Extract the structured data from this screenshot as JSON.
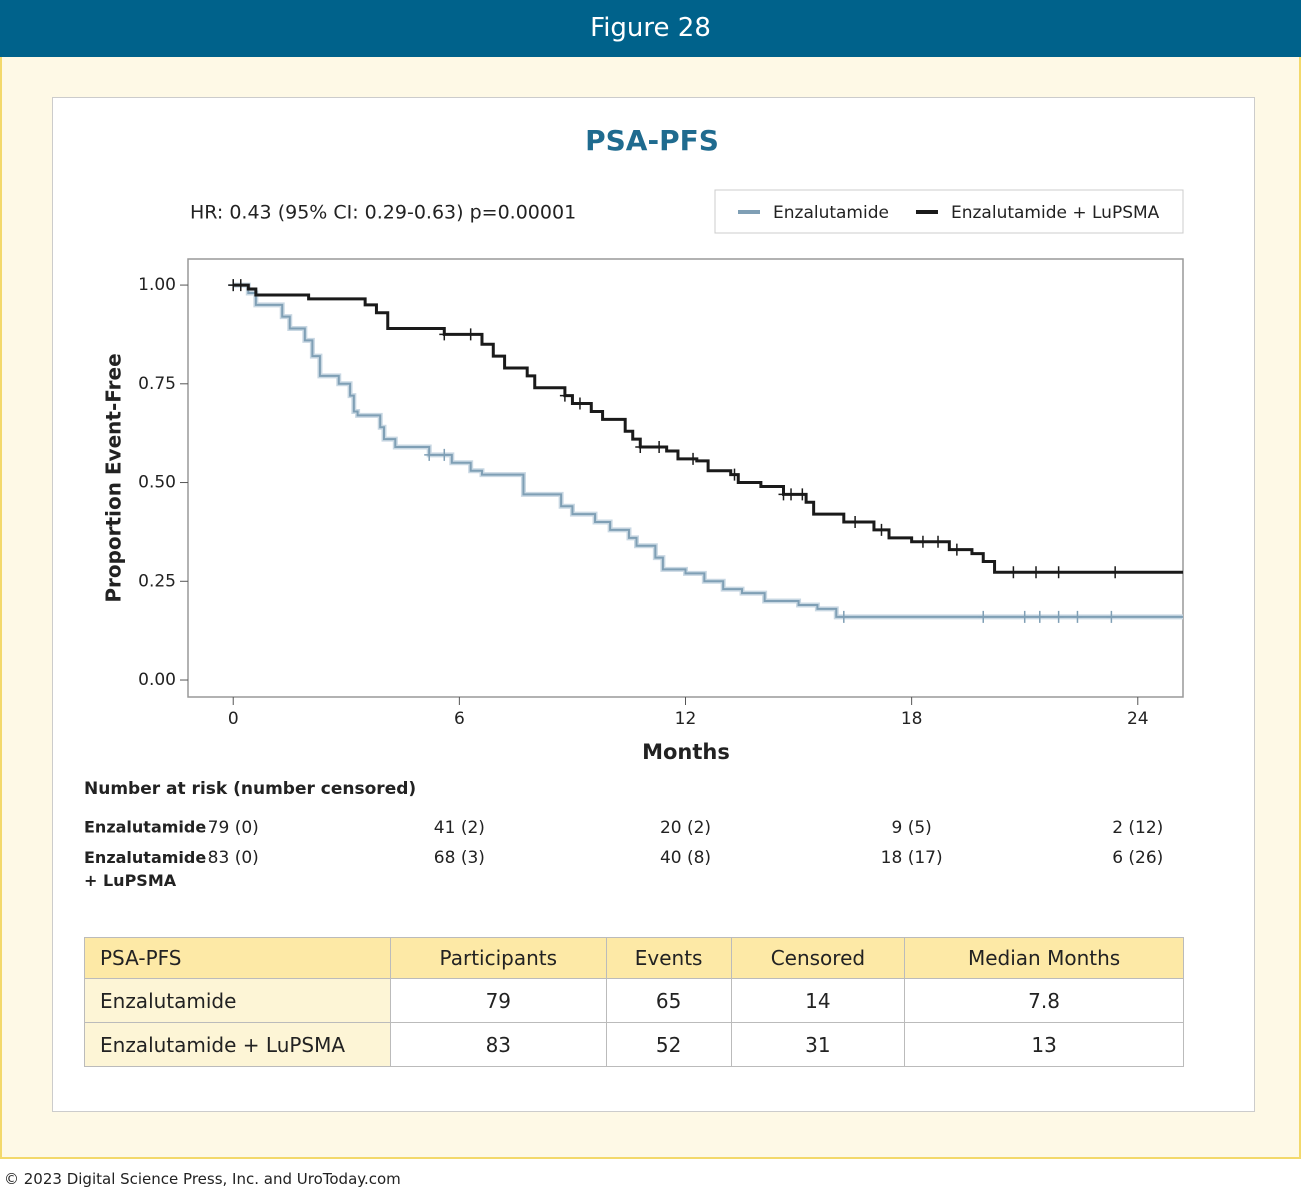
{
  "header": {
    "title": "Figure 28"
  },
  "chart_data": {
    "type": "step",
    "title": "PSA-PFS",
    "annotation": "HR: 0.43 (95% CI: 0.29-0.63) p=0.00001",
    "x_label": "Months",
    "y_label": "Proportion Event-Free",
    "xlim": [
      -1.2,
      25.2
    ],
    "ylim": [
      -0.043,
      1.066
    ],
    "xticks": [
      0,
      6,
      12,
      18,
      24
    ],
    "yticks": [
      {
        "value": 0,
        "label": "0.00"
      },
      {
        "value": 0.25,
        "label": "0.25"
      },
      {
        "value": 0.5,
        "label": "0.50"
      },
      {
        "value": 0.75,
        "label": "0.75"
      },
      {
        "value": 1,
        "label": "1.00"
      }
    ],
    "legend": "top-right",
    "series": [
      {
        "name": "Enzalutamide",
        "color": "#7f9fb5",
        "x": [
          0,
          0.4,
          0.6,
          1.3,
          1.5,
          1.9,
          2.1,
          2.3,
          2.8,
          3.1,
          3.2,
          3.3,
          3.9,
          4.0,
          4.3,
          5.2,
          5.8,
          6.3,
          6.6,
          7.7,
          8.7,
          9.0,
          9.6,
          10.0,
          10.5,
          10.7,
          11.2,
          11.4,
          12.0,
          12.5,
          13.0,
          13.5,
          14.1,
          15.0,
          15.5,
          16.0
        ],
        "values": [
          1.0,
          0.98,
          0.95,
          0.92,
          0.89,
          0.86,
          0.82,
          0.77,
          0.75,
          0.72,
          0.68,
          0.67,
          0.64,
          0.61,
          0.59,
          0.57,
          0.55,
          0.53,
          0.52,
          0.47,
          0.44,
          0.42,
          0.4,
          0.38,
          0.36,
          0.34,
          0.31,
          0.28,
          0.27,
          0.25,
          0.23,
          0.22,
          0.2,
          0.19,
          0.18,
          0.16
        ],
        "censored": [
          0,
          5.2,
          5.6,
          16.2,
          19.9,
          21.0,
          21.4,
          21.9,
          22.4,
          23.3
        ]
      },
      {
        "name": "Enzalutamide + LuPSMA",
        "color": "#1a1a1a",
        "x": [
          0,
          0.4,
          0.6,
          2.0,
          3.5,
          3.8,
          4.1,
          5.6,
          6.6,
          6.9,
          7.2,
          7.8,
          8.0,
          8.8,
          9.0,
          9.5,
          9.8,
          10.4,
          10.6,
          10.8,
          11.5,
          11.8,
          12.3,
          12.6,
          13.2,
          13.4,
          14.0,
          14.6,
          15.2,
          15.4,
          16.2,
          17.0,
          17.4,
          18.0,
          19.0,
          19.6,
          19.9,
          20.2
        ],
        "values": [
          1.0,
          0.99,
          0.975,
          0.965,
          0.95,
          0.93,
          0.89,
          0.875,
          0.85,
          0.82,
          0.79,
          0.77,
          0.74,
          0.72,
          0.7,
          0.68,
          0.66,
          0.63,
          0.61,
          0.59,
          0.58,
          0.56,
          0.555,
          0.53,
          0.52,
          0.5,
          0.49,
          0.47,
          0.45,
          0.42,
          0.4,
          0.38,
          0.36,
          0.35,
          0.33,
          0.32,
          0.3,
          0.273
        ],
        "censored": [
          0,
          0.2,
          5.6,
          6.3,
          8.8,
          9.2,
          10.8,
          11.3,
          12.2,
          13.3,
          14.6,
          14.8,
          15.1,
          16.5,
          17.2,
          18.3,
          18.7,
          19.2,
          20.7,
          21.3,
          21.9,
          23.4
        ]
      }
    ]
  },
  "risk_table": {
    "title": "Number at risk (number censored)",
    "rows": [
      {
        "name": "Enzalutamide",
        "cells": [
          "79 (0)",
          "41 (2)",
          "20 (2)",
          "9 (5)",
          "2 (12)"
        ]
      },
      {
        "name": "Enzalutamide + LuPSMA",
        "cells": [
          "83 (0)",
          "68 (3)",
          "40 (8)",
          "18 (17)",
          "6 (26)"
        ]
      }
    ]
  },
  "table": {
    "header": [
      "PSA-PFS",
      "Participants",
      "Events",
      "Censored",
      "Median Months"
    ],
    "rows": [
      [
        "Enzalutamide",
        79,
        65,
        14,
        7.8
      ],
      [
        "Enzalutamide + LuPSMA",
        83,
        52,
        31,
        13
      ]
    ]
  },
  "footer": "© 2023 Digital Science Press, Inc. and UroToday.com"
}
